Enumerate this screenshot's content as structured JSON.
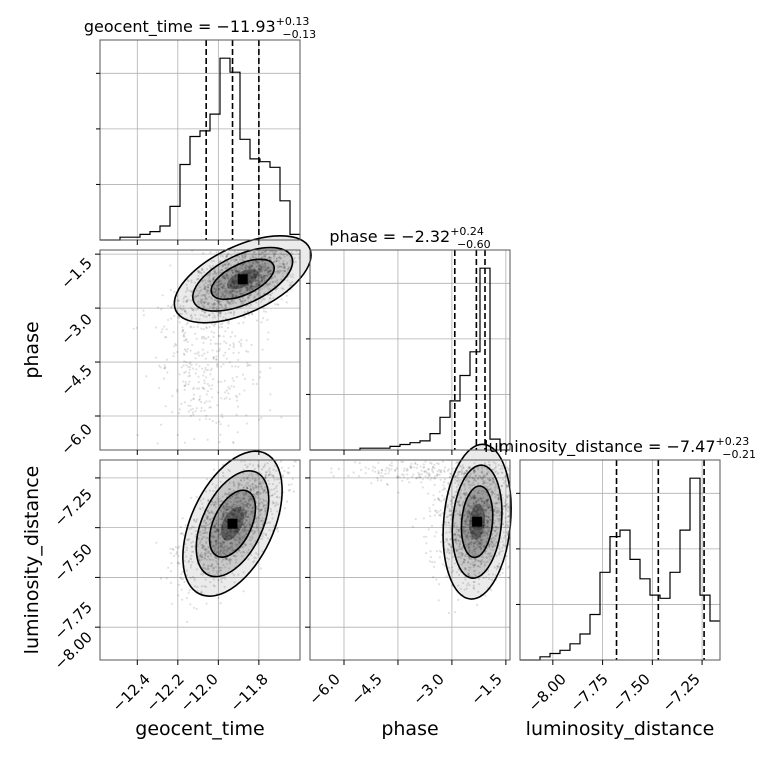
{
  "chart_data": {
    "type": "corner",
    "parameters": [
      "geocent_time",
      "phase",
      "luminosity_distance"
    ],
    "axis_labels": [
      "geocent_time",
      "phase",
      "luminosity_distance"
    ],
    "titles": [
      {
        "param": "geocent_time",
        "text": "geocent_time = −11.93",
        "sup": "+0.13",
        "sub": "−0.13"
      },
      {
        "param": "phase",
        "text": "phase = −2.32",
        "sup": "+0.24",
        "sub": "−0.60"
      },
      {
        "param": "luminosity_distance",
        "text": "luminosity_distance = −7.47",
        "sup": "+0.23",
        "sub": "−0.21"
      }
    ],
    "ranges": {
      "geocent_time": [
        -12.584,
        -11.597
      ],
      "phase": [
        -6.945,
        -1.385
      ],
      "luminosity_distance": [
        -8.165,
        -7.16
      ]
    },
    "ticks": {
      "geocent_time": [
        -12.4,
        -12.2,
        -12.0,
        -11.8
      ],
      "phase": [
        -6.0,
        -4.5,
        -3.0,
        -1.5
      ],
      "luminosity_distance": [
        -8.0,
        -7.75,
        -7.5,
        -7.25
      ]
    },
    "tick_labels": {
      "geocent_time": [
        "−12.4",
        "−12.2",
        "−12.0",
        "−11.8"
      ],
      "phase": [
        "−6.0",
        "−4.5",
        "−3.0",
        "−1.5"
      ],
      "luminosity_distance": [
        "−8.00",
        "−7.75",
        "−7.50",
        "−7.25"
      ]
    },
    "quantiles": {
      "geocent_time": [
        -12.06,
        -11.93,
        -11.8
      ],
      "phase": [
        -2.92,
        -2.32,
        -2.08
      ],
      "luminosity_distance": [
        -7.68,
        -7.47,
        -7.24
      ]
    },
    "histograms": {
      "geocent_time": {
        "bin_edges": [
          -12.584,
          -12.5346,
          -12.4853,
          -12.4359,
          -12.3866,
          -12.3372,
          -12.2879,
          -12.2385,
          -12.1892,
          -12.1398,
          -12.0905,
          -12.0411,
          -11.9918,
          -11.9424,
          -11.8931,
          -11.8437,
          -11.7944,
          -11.745,
          -11.6957,
          -11.6463,
          -11.597
        ],
        "counts": [
          0,
          0,
          1,
          1,
          2,
          3,
          5,
          12,
          27,
          37,
          39,
          45,
          65,
          60,
          36,
          29,
          28,
          26,
          14,
          2
        ]
      },
      "phase": {
        "bin_edges": [
          -6.945,
          -6.667,
          -6.389,
          -6.111,
          -5.833,
          -5.555,
          -5.277,
          -4.999,
          -4.721,
          -4.443,
          -4.165,
          -3.887,
          -3.609,
          -3.331,
          -3.053,
          -2.775,
          -2.497,
          -2.219,
          -1.941,
          -1.663,
          -1.385
        ],
        "counts": [
          0,
          0,
          0,
          0,
          0,
          1,
          1,
          1,
          2,
          3,
          4,
          5,
          9,
          18,
          27,
          41,
          54,
          100,
          6,
          0
        ]
      },
      "luminosity_distance": {
        "bin_edges": [
          -8.165,
          -8.11475,
          -8.0645,
          -8.01425,
          -7.964,
          -7.91375,
          -7.8635,
          -7.81325,
          -7.763,
          -7.71275,
          -7.6625,
          -7.61225,
          -7.562,
          -7.51175,
          -7.4615,
          -7.41125,
          -7.361,
          -7.31075,
          -7.2605,
          -7.21025,
          -7.16
        ],
        "counts": [
          0,
          0,
          1,
          2,
          3,
          5,
          8,
          14,
          27,
          38,
          40,
          31,
          25,
          20,
          19,
          27,
          40,
          56,
          20,
          12
        ]
      }
    }
  }
}
